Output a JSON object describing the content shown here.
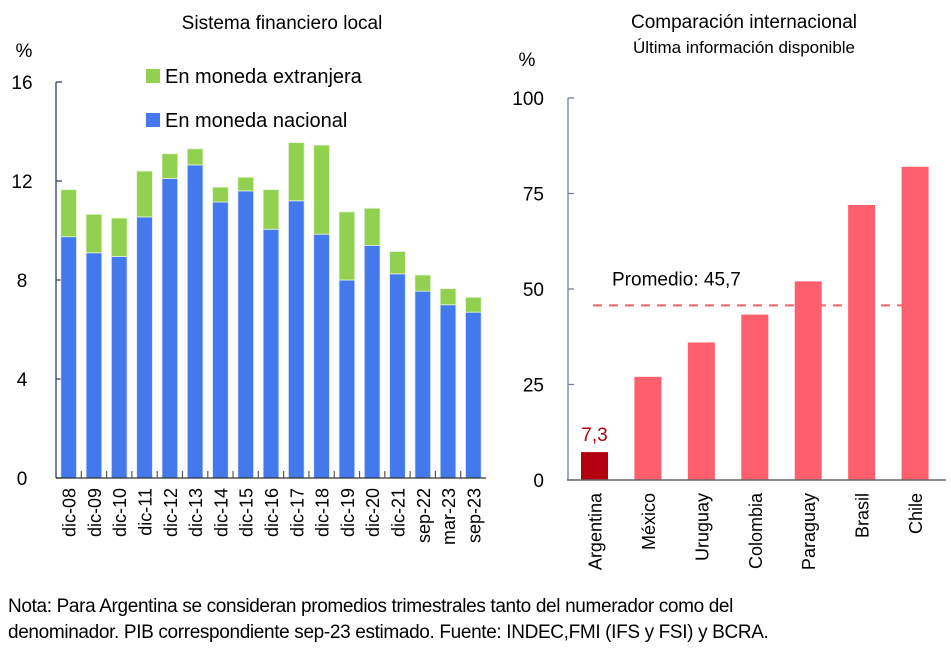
{
  "chart_data": [
    {
      "type": "bar",
      "stacked": true,
      "title": "Sistema financiero local",
      "ylabel": "%",
      "xlabel": "",
      "ylim": [
        0,
        16
      ],
      "yticks": [
        "0",
        "4",
        "8",
        "12",
        "16"
      ],
      "ytick_values": [
        0,
        4,
        8,
        12,
        16
      ],
      "grid": false,
      "legend_position": "top-center",
      "categories": [
        "dic-08",
        "dic-09",
        "dic-10",
        "dic-11",
        "dic-12",
        "dic-13",
        "dic-14",
        "dic-15",
        "dic-16",
        "dic-17",
        "dic-18",
        "dic-19",
        "dic-20",
        "dic-21",
        "sep-22",
        "mar-23",
        "sep-23"
      ],
      "series": [
        {
          "name": "En moneda nacional",
          "color": "#4379EC",
          "values": [
            9.75,
            9.1,
            8.95,
            10.55,
            12.1,
            12.65,
            11.15,
            11.6,
            10.05,
            11.2,
            9.85,
            8.0,
            9.4,
            8.25,
            7.55,
            7.0,
            6.7
          ]
        },
        {
          "name": "En moneda extranjera",
          "color": "#92D050",
          "values": [
            1.9,
            1.55,
            1.55,
            1.85,
            1.0,
            0.65,
            0.6,
            0.55,
            1.6,
            2.35,
            3.6,
            2.75,
            1.5,
            0.9,
            0.65,
            0.65,
            0.6
          ]
        }
      ],
      "legend": [
        {
          "label": "En moneda extranjera",
          "color": "#92D050"
        },
        {
          "label": "En moneda nacional",
          "color": "#4379EC"
        }
      ]
    },
    {
      "type": "bar",
      "title": "Comparación internacional",
      "subtitle": "Última información disponible",
      "ylabel": "%",
      "xlabel": "",
      "ylim": [
        0,
        100
      ],
      "yticks": [
        "0",
        "25",
        "50",
        "75",
        "100"
      ],
      "ytick_values": [
        0,
        25,
        50,
        75,
        100
      ],
      "grid": false,
      "categories": [
        "Argentina",
        "México",
        "Uruguay",
        "Colombia",
        "Paraguay",
        "Brasil",
        "Chile"
      ],
      "values": [
        7.3,
        27.0,
        36.0,
        43.3,
        52.0,
        72.0,
        82.0
      ],
      "colors": [
        "#B3000F",
        "#FF5F6D",
        "#FF5F6D",
        "#FF5F6D",
        "#FF5F6D",
        "#FF5F6D",
        "#FF5F6D"
      ],
      "data_labels": [
        {
          "category": "Argentina",
          "text": "7,3",
          "color": "#B3000F"
        }
      ],
      "reference_line": {
        "label": "Promedio: 45,7",
        "value": 45.7,
        "color": "#FF5F6D",
        "style": "dashed"
      }
    }
  ],
  "note": {
    "line1": "Nota:  Para Argentina se consideran promedios trimestrales tanto del numerador como del",
    "line2": "denominador. PIB correspondiente sep-23 estimado. Fuente: INDEC,FMI (IFS y FSI) y BCRA."
  }
}
